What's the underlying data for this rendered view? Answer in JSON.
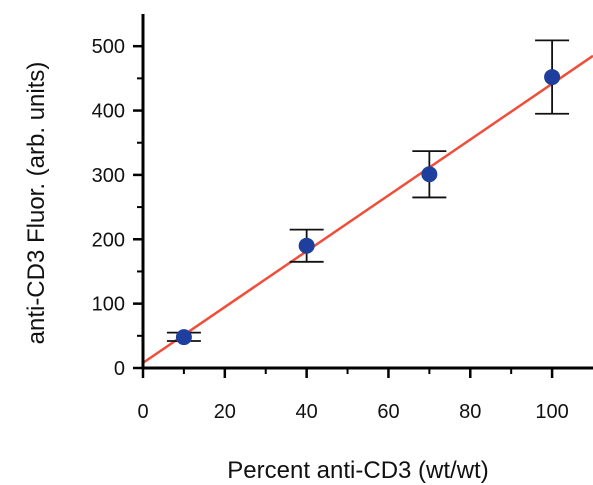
{
  "chart_data": {
    "type": "scatter",
    "title": "",
    "xlabel": "Percent anti-CD3 (wt/wt)",
    "ylabel": "anti-CD3 Fluor. (arb. units)",
    "xlim": [
      0,
      110
    ],
    "ylim": [
      0,
      550
    ],
    "xticks": [
      0,
      20,
      40,
      60,
      80,
      100
    ],
    "yticks": [
      0,
      100,
      200,
      300,
      400,
      500
    ],
    "grid": false,
    "legend": "none",
    "series": [
      {
        "x": [
          10,
          40,
          70,
          100
        ],
        "y": [
          48,
          190,
          301,
          452
        ],
        "err_low": [
          42,
          165,
          265,
          395
        ],
        "err_high": [
          55,
          215,
          337,
          509
        ]
      }
    ],
    "fit_line": {
      "x": [
        0,
        110
      ],
      "y": [
        8,
        485
      ]
    },
    "colors": {
      "points": "#1f3f9f",
      "fit": "#ef4f3a",
      "axes": "#000000",
      "errorbars": "#111111"
    }
  }
}
